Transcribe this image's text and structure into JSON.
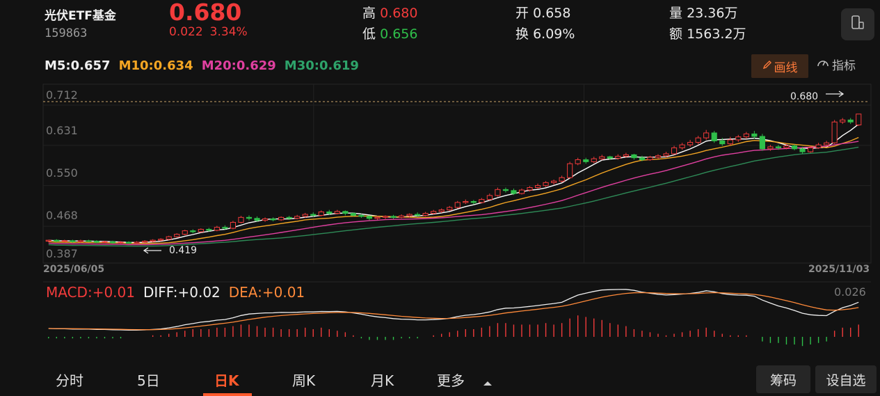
{
  "header": {
    "name": "光伏ETF基金",
    "code": "159863",
    "price": "0.680",
    "change": "0.022",
    "change_pct": "3.34%",
    "high_label": "高",
    "high": "0.680",
    "low_label": "低",
    "low": "0.656",
    "open_label": "开",
    "open": "0.658",
    "turnover_label": "换",
    "turnover": "6.09%",
    "volume_label": "量",
    "volume": "23.36万",
    "amount_label": "额",
    "amount": "1563.2万"
  },
  "ma": {
    "m5": "M5:0.657",
    "m10": "M10:0.634",
    "m20": "M20:0.629",
    "m30": "M30:0.619"
  },
  "toolbar": {
    "draw_label": "画线",
    "indicator_label": "指标"
  },
  "chart": {
    "y_ticks": [
      "0.712",
      "0.631",
      "0.550",
      "0.468",
      "0.387"
    ],
    "start_date": "2025/06/05",
    "end_date": "2025/11/03",
    "max_label": "0.680",
    "min_label": "0.419",
    "macd_top": "0.026"
  },
  "macd": {
    "macd": "MACD:+0.01",
    "diff": "DIFF:+0.02",
    "dea": "DEA:+0.01"
  },
  "tabs": [
    "分时",
    "5日",
    "日K",
    "周K",
    "月K",
    "更多"
  ],
  "buttons": {
    "chips": "筹码",
    "watchlist": "设自选"
  },
  "colors": {
    "up": "#f23b3b",
    "down": "#2fbf4a",
    "m5": "#ffffff",
    "m10": "#f5a623",
    "m20": "#e040a0",
    "m30": "#2e8b57",
    "accent": "#ff5a2c"
  },
  "chart_data": {
    "type": "candlestick",
    "title": "光伏ETF基金 日K",
    "ylim": [
      0.387,
      0.712
    ],
    "x_range": [
      "2025/06/05",
      "2025/11/03"
    ],
    "candles": [
      [
        0.424,
        0.426,
        0.427,
        0.422
      ],
      [
        0.426,
        0.424,
        0.428,
        0.422
      ],
      [
        0.424,
        0.425,
        0.427,
        0.422
      ],
      [
        0.425,
        0.423,
        0.427,
        0.421
      ],
      [
        0.423,
        0.425,
        0.427,
        0.421
      ],
      [
        0.425,
        0.424,
        0.427,
        0.422
      ],
      [
        0.424,
        0.422,
        0.426,
        0.42
      ],
      [
        0.422,
        0.423,
        0.425,
        0.42
      ],
      [
        0.423,
        0.421,
        0.425,
        0.419
      ],
      [
        0.421,
        0.422,
        0.424,
        0.419
      ],
      [
        0.422,
        0.42,
        0.424,
        0.419
      ],
      [
        0.42,
        0.422,
        0.424,
        0.419
      ],
      [
        0.422,
        0.424,
        0.426,
        0.42
      ],
      [
        0.424,
        0.426,
        0.428,
        0.422
      ],
      [
        0.426,
        0.428,
        0.43,
        0.424
      ],
      [
        0.428,
        0.433,
        0.435,
        0.426
      ],
      [
        0.433,
        0.438,
        0.44,
        0.431
      ],
      [
        0.438,
        0.445,
        0.447,
        0.436
      ],
      [
        0.445,
        0.443,
        0.448,
        0.44
      ],
      [
        0.443,
        0.448,
        0.45,
        0.441
      ],
      [
        0.448,
        0.446,
        0.451,
        0.443
      ],
      [
        0.446,
        0.452,
        0.455,
        0.444
      ],
      [
        0.452,
        0.45,
        0.456,
        0.447
      ],
      [
        0.45,
        0.462,
        0.465,
        0.448
      ],
      [
        0.462,
        0.472,
        0.475,
        0.46
      ],
      [
        0.472,
        0.47,
        0.476,
        0.466
      ],
      [
        0.47,
        0.466,
        0.474,
        0.463
      ],
      [
        0.466,
        0.469,
        0.472,
        0.463
      ],
      [
        0.469,
        0.467,
        0.472,
        0.464
      ],
      [
        0.467,
        0.472,
        0.474,
        0.465
      ],
      [
        0.472,
        0.47,
        0.475,
        0.467
      ],
      [
        0.47,
        0.474,
        0.477,
        0.468
      ],
      [
        0.474,
        0.478,
        0.481,
        0.471
      ],
      [
        0.478,
        0.476,
        0.482,
        0.473
      ],
      [
        0.476,
        0.483,
        0.486,
        0.474
      ],
      [
        0.483,
        0.48,
        0.487,
        0.477
      ],
      [
        0.48,
        0.484,
        0.487,
        0.478
      ],
      [
        0.484,
        0.48,
        0.486,
        0.476
      ],
      [
        0.48,
        0.476,
        0.482,
        0.474
      ],
      [
        0.476,
        0.474,
        0.479,
        0.471
      ],
      [
        0.474,
        0.47,
        0.476,
        0.466
      ],
      [
        0.47,
        0.472,
        0.475,
        0.467
      ],
      [
        0.472,
        0.474,
        0.476,
        0.469
      ],
      [
        0.474,
        0.472,
        0.477,
        0.469
      ],
      [
        0.472,
        0.475,
        0.478,
        0.47
      ],
      [
        0.475,
        0.478,
        0.48,
        0.472
      ],
      [
        0.478,
        0.476,
        0.482,
        0.473
      ],
      [
        0.476,
        0.48,
        0.483,
        0.474
      ],
      [
        0.48,
        0.484,
        0.487,
        0.478
      ],
      [
        0.484,
        0.487,
        0.49,
        0.481
      ],
      [
        0.487,
        0.492,
        0.495,
        0.485
      ],
      [
        0.492,
        0.502,
        0.505,
        0.49
      ],
      [
        0.502,
        0.504,
        0.508,
        0.499
      ],
      [
        0.504,
        0.502,
        0.507,
        0.498
      ],
      [
        0.502,
        0.508,
        0.511,
        0.5
      ],
      [
        0.508,
        0.516,
        0.52,
        0.506
      ],
      [
        0.516,
        0.528,
        0.532,
        0.514
      ],
      [
        0.528,
        0.526,
        0.532,
        0.522
      ],
      [
        0.526,
        0.52,
        0.53,
        0.517
      ],
      [
        0.52,
        0.527,
        0.53,
        0.518
      ],
      [
        0.527,
        0.532,
        0.535,
        0.524
      ],
      [
        0.532,
        0.536,
        0.54,
        0.529
      ],
      [
        0.536,
        0.542,
        0.545,
        0.533
      ],
      [
        0.542,
        0.545,
        0.548,
        0.538
      ],
      [
        0.545,
        0.552,
        0.556,
        0.542
      ],
      [
        0.552,
        0.58,
        0.584,
        0.55
      ],
      [
        0.58,
        0.588,
        0.592,
        0.577
      ],
      [
        0.588,
        0.584,
        0.592,
        0.58
      ],
      [
        0.584,
        0.59,
        0.594,
        0.581
      ],
      [
        0.59,
        0.594,
        0.598,
        0.587
      ],
      [
        0.594,
        0.591,
        0.596,
        0.588
      ],
      [
        0.591,
        0.595,
        0.599,
        0.588
      ],
      [
        0.595,
        0.598,
        0.602,
        0.592
      ],
      [
        0.598,
        0.592,
        0.6,
        0.588
      ],
      [
        0.592,
        0.588,
        0.596,
        0.585
      ],
      [
        0.588,
        0.593,
        0.596,
        0.586
      ],
      [
        0.593,
        0.596,
        0.599,
        0.59
      ],
      [
        0.596,
        0.6,
        0.604,
        0.593
      ],
      [
        0.6,
        0.612,
        0.616,
        0.598
      ],
      [
        0.612,
        0.618,
        0.622,
        0.608
      ],
      [
        0.618,
        0.623,
        0.628,
        0.614
      ],
      [
        0.623,
        0.632,
        0.636,
        0.619
      ],
      [
        0.632,
        0.642,
        0.648,
        0.628
      ],
      [
        0.642,
        0.626,
        0.646,
        0.622
      ],
      [
        0.626,
        0.62,
        0.632,
        0.616
      ],
      [
        0.62,
        0.628,
        0.634,
        0.617
      ],
      [
        0.628,
        0.634,
        0.638,
        0.624
      ],
      [
        0.634,
        0.64,
        0.644,
        0.63
      ],
      [
        0.64,
        0.635,
        0.646,
        0.63
      ],
      [
        0.635,
        0.61,
        0.64,
        0.606
      ],
      [
        0.61,
        0.614,
        0.618,
        0.606
      ],
      [
        0.614,
        0.612,
        0.618,
        0.608
      ],
      [
        0.612,
        0.616,
        0.62,
        0.609
      ],
      [
        0.616,
        0.61,
        0.619,
        0.607
      ],
      [
        0.61,
        0.604,
        0.614,
        0.6
      ],
      [
        0.604,
        0.612,
        0.616,
        0.602
      ],
      [
        0.612,
        0.618,
        0.622,
        0.61
      ],
      [
        0.618,
        0.622,
        0.626,
        0.615
      ],
      [
        0.622,
        0.664,
        0.668,
        0.62
      ],
      [
        0.664,
        0.668,
        0.672,
        0.66
      ],
      [
        0.668,
        0.664,
        0.672,
        0.66
      ],
      [
        0.658,
        0.68,
        0.68,
        0.656
      ]
    ],
    "macd_hist": [
      -0.001,
      -0.001,
      -0.001,
      -0.001,
      -0.001,
      -0.001,
      -0.001,
      -0.001,
      -0.001,
      -0.001,
      0.0,
      0.0,
      0.0,
      0.001,
      0.001,
      0.002,
      0.003,
      0.004,
      0.005,
      0.005,
      0.005,
      0.006,
      0.006,
      0.007,
      0.008,
      0.008,
      0.007,
      0.006,
      0.006,
      0.005,
      0.005,
      0.005,
      0.006,
      0.005,
      0.006,
      0.005,
      0.004,
      0.003,
      0.001,
      -0.001,
      -0.002,
      -0.002,
      -0.002,
      -0.002,
      -0.001,
      -0.001,
      -0.001,
      0.0,
      0.001,
      0.002,
      0.003,
      0.004,
      0.005,
      0.005,
      0.006,
      0.007,
      0.009,
      0.009,
      0.008,
      0.008,
      0.008,
      0.008,
      0.009,
      0.008,
      0.009,
      0.012,
      0.014,
      0.013,
      0.012,
      0.011,
      0.009,
      0.008,
      0.007,
      0.005,
      0.004,
      0.003,
      0.002,
      0.001,
      0.002,
      0.003,
      0.004,
      0.005,
      0.006,
      0.004,
      0.002,
      0.001,
      0.001,
      0.001,
      0.0,
      -0.003,
      -0.004,
      -0.004,
      -0.005,
      -0.005,
      -0.006,
      -0.005,
      -0.004,
      -0.003,
      0.004,
      0.006,
      0.006,
      0.008
    ]
  }
}
